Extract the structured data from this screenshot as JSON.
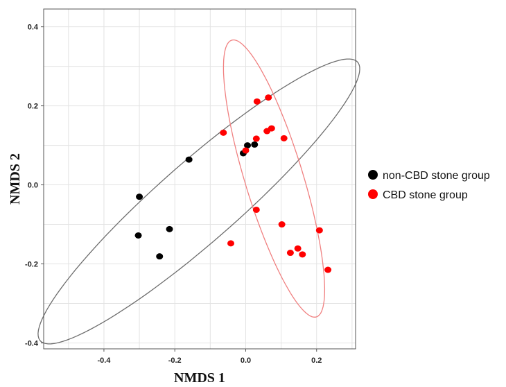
{
  "chart_data": {
    "type": "scatter",
    "title": "",
    "xlabel": "NMDS 1",
    "ylabel": "NMDS 2",
    "xlim": [
      -0.57,
      0.31
    ],
    "ylim": [
      -0.415,
      0.445
    ],
    "xticks": [
      -0.4,
      -0.2,
      0.0,
      0.2
    ],
    "yticks": [
      -0.4,
      -0.2,
      0.0,
      0.2,
      0.4
    ],
    "xtick_labels": [
      "-0.4",
      "-0.2",
      "0.0",
      "0.2"
    ],
    "ytick_labels": [
      "-0.4",
      "-0.2",
      "0.0",
      "0.2",
      "0.4"
    ],
    "grid": true,
    "legend_position": "right",
    "series": [
      {
        "name": "non-CBD stone group",
        "color": "#000000",
        "points": [
          {
            "x": -0.3,
            "y": -0.03
          },
          {
            "x": -0.16,
            "y": 0.064
          },
          {
            "x": -0.215,
            "y": -0.112
          },
          {
            "x": -0.303,
            "y": -0.128
          },
          {
            "x": -0.243,
            "y": -0.181
          },
          {
            "x": -0.007,
            "y": 0.08
          },
          {
            "x": 0.005,
            "y": 0.1
          },
          {
            "x": 0.025,
            "y": 0.102
          }
        ]
      },
      {
        "name": "CBD stone group",
        "color": "#ff0000",
        "points": [
          {
            "x": 0.032,
            "y": 0.211
          },
          {
            "x": 0.064,
            "y": 0.221
          },
          {
            "x": -0.063,
            "y": 0.132
          },
          {
            "x": 0.073,
            "y": 0.143
          },
          {
            "x": 0.06,
            "y": 0.136
          },
          {
            "x": 0.03,
            "y": 0.117
          },
          {
            "x": 0.108,
            "y": 0.118
          },
          {
            "x": 0.0,
            "y": 0.087
          },
          {
            "x": 0.03,
            "y": -0.063
          },
          {
            "x": 0.102,
            "y": -0.1
          },
          {
            "x": 0.208,
            "y": -0.115
          },
          {
            "x": -0.042,
            "y": -0.148
          },
          {
            "x": 0.147,
            "y": -0.161
          },
          {
            "x": 0.126,
            "y": -0.172
          },
          {
            "x": 0.16,
            "y": -0.176
          },
          {
            "x": 0.232,
            "y": -0.215
          }
        ]
      }
    ],
    "ellipses": [
      {
        "name": "non-CBD stone group ellipse",
        "color": "#6d6d6d",
        "cx": -0.132,
        "cy": -0.042,
        "rx": 0.57,
        "ry": 0.105,
        "angle_deg": 38
      },
      {
        "name": "CBD stone group ellipse",
        "color": "#f08080",
        "cx": 0.08,
        "cy": 0.016,
        "rx": 0.37,
        "ry": 0.081,
        "angle_deg": -71
      }
    ]
  }
}
